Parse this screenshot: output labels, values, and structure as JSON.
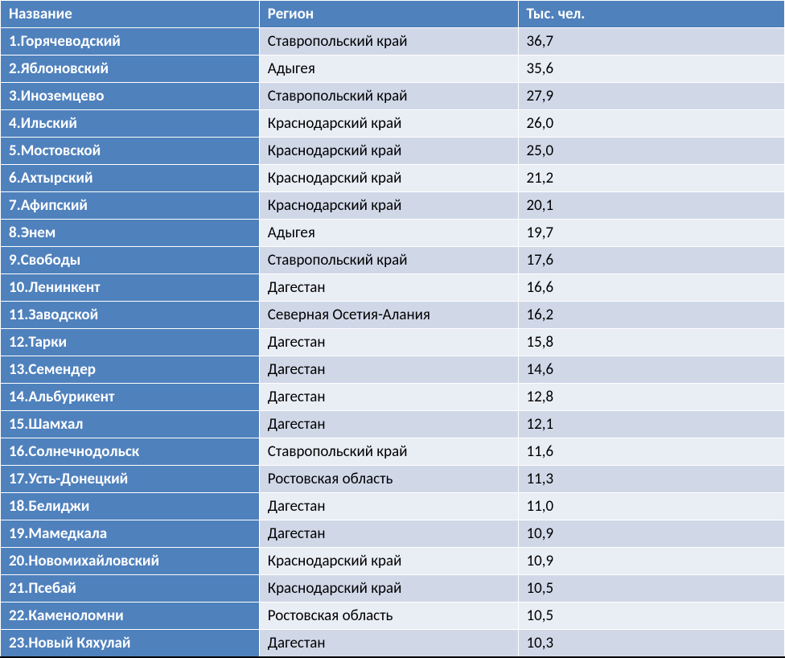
{
  "table": {
    "header_bg": "#4f81bd",
    "header_fg": "#ffffff",
    "name_col_bg": "#4f81bd",
    "name_col_fg": "#ffffff",
    "row_odd_bg": "#d0d8e8",
    "row_even_bg": "#e9edf4",
    "row_fg": "#000000",
    "border_color": "#ffffff",
    "columns": [
      "Название",
      "Регион",
      "Тыс. чел."
    ],
    "rows": [
      {
        "idx": "1",
        "name": "Горячеводский",
        "region": "Ставропольский край",
        "pop": "36,7"
      },
      {
        "idx": "2",
        "name": "Яблоновский",
        "region": "Адыгея",
        "pop": "35,6"
      },
      {
        "idx": "3",
        "name": "Иноземцево",
        "region": "Ставропольский край",
        "pop": "27,9"
      },
      {
        "idx": "4",
        "name": "Ильский",
        "region": "Краснодарский край",
        "pop": "26,0"
      },
      {
        "idx": "5",
        "name": "Мостовской",
        "region": "Краснодарский край",
        "pop": "25,0"
      },
      {
        "idx": "6",
        "name": "Ахтырский",
        "region": "Краснодарский край",
        "pop": "21,2"
      },
      {
        "idx": "7",
        "name": "Афипский",
        "region": "Краснодарский край",
        "pop": "20,1"
      },
      {
        "idx": "8",
        "name": "Энем",
        "region": "Адыгея",
        "pop": "19,7"
      },
      {
        "idx": "9",
        "name": "Свободы",
        "region": "Ставропольский край",
        "pop": "17,6"
      },
      {
        "idx": "10",
        "name": "Ленинкент",
        "region": "Дагестан",
        "pop": "16,6"
      },
      {
        "idx": "11",
        "name": "Заводской",
        "region": "Северная Осетия-Алания",
        "pop": "16,2"
      },
      {
        "idx": "12",
        "name": "Тарки",
        "region": "Дагестан",
        "pop": "15,8"
      },
      {
        "idx": "13",
        "name": "Семендер",
        "region": "Дагестан",
        "pop": "14,6"
      },
      {
        "idx": "14",
        "name": "Альбурикент",
        "region": "Дагестан",
        "pop": "12,8"
      },
      {
        "idx": "15",
        "name": "Шамхал",
        "region": "Дагестан",
        "pop": "12,1"
      },
      {
        "idx": "16",
        "name": "Солнечнодольск",
        "region": "Ставропольский край",
        "pop": "11,6"
      },
      {
        "idx": "17",
        "name": "Усть-Донецкий",
        "region": "Ростовская область",
        "pop": "11,3"
      },
      {
        "idx": "18",
        "name": "Белиджи",
        "region": "Дагестан",
        "pop": "11,0"
      },
      {
        "idx": "19",
        "name": "Мамедкала",
        "region": "Дагестан",
        "pop": "10,9"
      },
      {
        "idx": "20",
        "name": "Новомихайловский",
        "region": "Краснодарский край",
        "pop": "10,9"
      },
      {
        "idx": "21",
        "name": "Псебай",
        "region": "Краснодарский край",
        "pop": "10,5"
      },
      {
        "idx": "22",
        "name": "Каменоломни",
        "region": "Ростовская область",
        "pop": "10,5"
      },
      {
        "idx": "23",
        "name": "Новый Кяхулай",
        "region": "Дагестан",
        "pop": "10,3"
      }
    ]
  }
}
